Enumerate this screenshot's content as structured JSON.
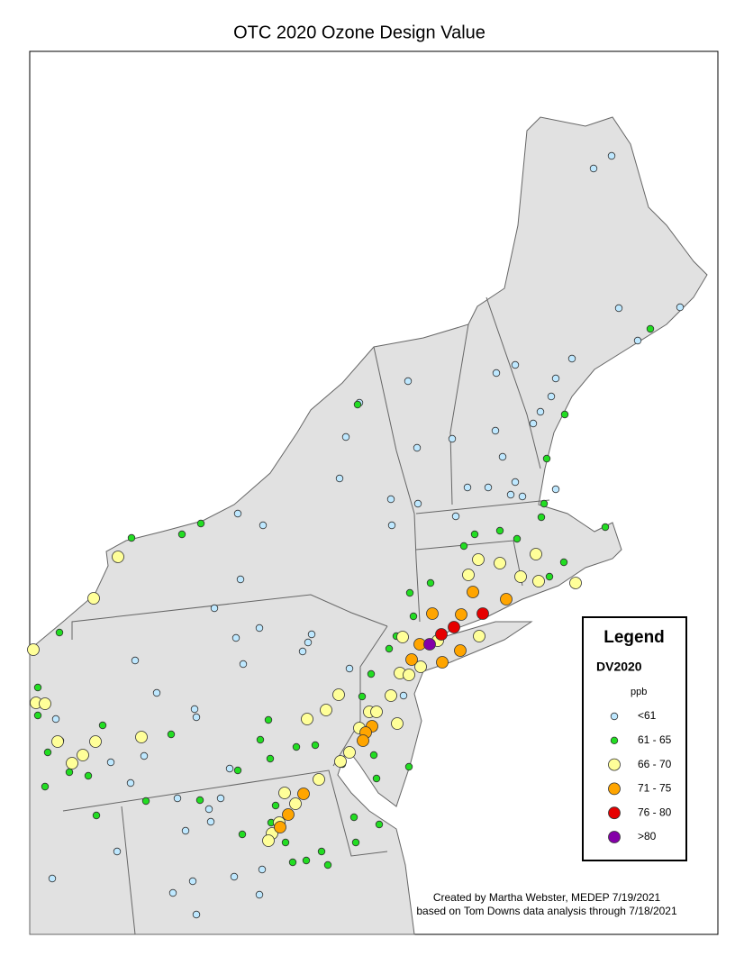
{
  "title": "OTC 2020 Ozone Design Value",
  "legend": {
    "title": "Legend",
    "field": "DV2020",
    "unit": "ppb",
    "classes": [
      {
        "label": "<61",
        "color": "#bee8ff"
      },
      {
        "label": "61 - 65",
        "color": "#22dd22"
      },
      {
        "label": "66 - 70",
        "color": "#ffff99"
      },
      {
        "label": "71 - 75",
        "color": "#ffa500"
      },
      {
        "label": "76 - 80",
        "color": "#e60000"
      },
      {
        "label": ">80",
        "color": "#8400a8"
      }
    ]
  },
  "credit": [
    "Created by Martha Webster, MEDEP 7/19/2021",
    "based on Tom Downs data analysis through 7/18/2021"
  ]
}
